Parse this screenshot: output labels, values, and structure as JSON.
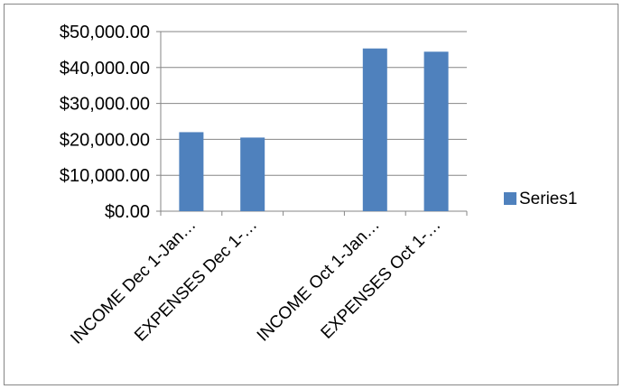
{
  "chart_data": {
    "type": "bar",
    "categories": [
      "INCOME Dec 1-Jan…",
      "EXPENSES Dec 1-…",
      "",
      "INCOME Oct 1-Jan…",
      "EXPENSES Oct 1-…"
    ],
    "series": [
      {
        "name": "Series1",
        "color": "#4f81bd",
        "values": [
          22000,
          20500,
          null,
          45300,
          44400
        ]
      }
    ],
    "y_ticks": [
      "$0.00",
      "$10,000.00",
      "$20,000.00",
      "$30,000.00",
      "$40,000.00",
      "$50,000.00"
    ],
    "ylim": [
      0,
      50000
    ],
    "grid": true,
    "legend_position": "right",
    "title": "",
    "xlabel": "",
    "ylabel": ""
  }
}
